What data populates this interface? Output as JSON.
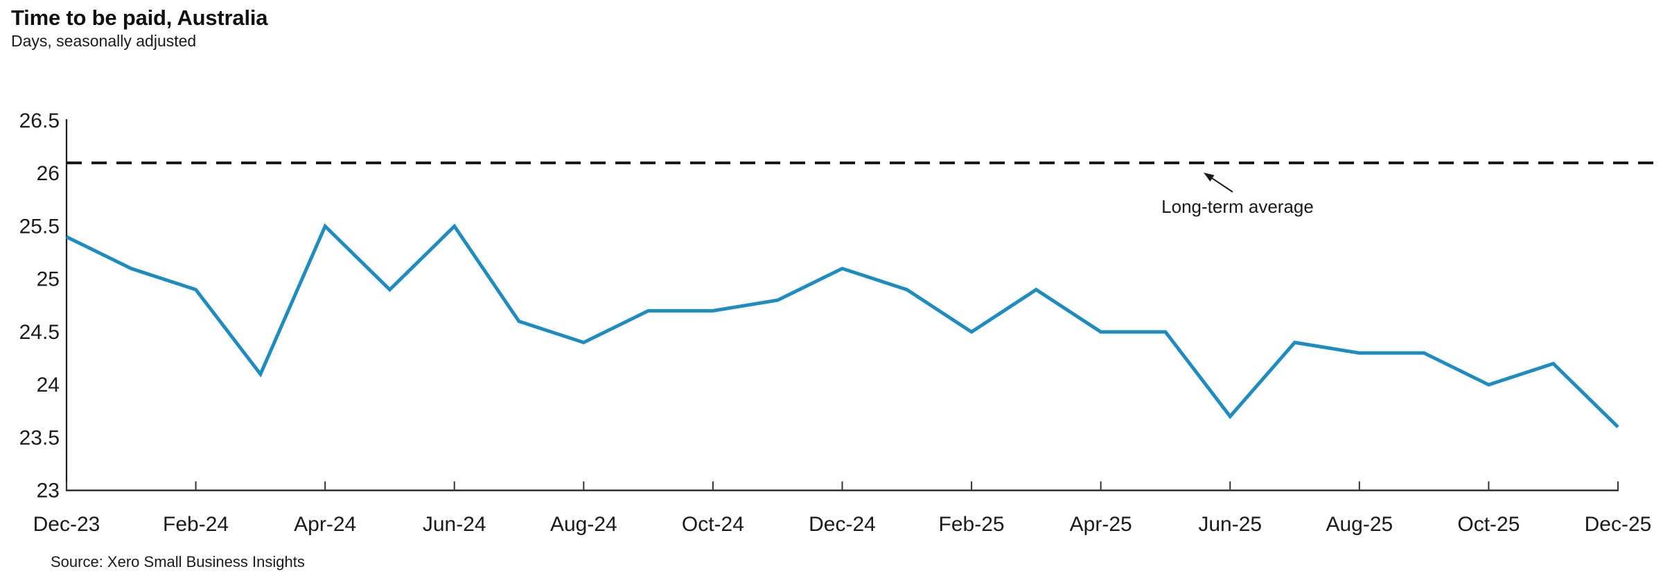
{
  "header": {
    "title": "Time to be paid, Australia",
    "subtitle": "Days, seasonally adjusted"
  },
  "chart_data": {
    "type": "line",
    "title": "Time to be paid, Australia",
    "subtitle": "Days, seasonally adjusted",
    "x": [
      "Dec-23",
      "Jan-24",
      "Feb-24",
      "Mar-24",
      "Apr-24",
      "May-24",
      "Jun-24",
      "Jul-24",
      "Aug-24",
      "Sep-24",
      "Oct-24",
      "Nov-24",
      "Dec-24",
      "Jan-25",
      "Feb-25",
      "Mar-25",
      "Apr-25",
      "May-25",
      "Jun-25",
      "Jul-25",
      "Aug-25",
      "Sep-25",
      "Oct-25",
      "Nov-25",
      "Dec-25"
    ],
    "series": [
      {
        "name": "Time to be paid (days, seasonally adjusted)",
        "values": [
          25.4,
          25.1,
          24.9,
          24.1,
          25.5,
          24.9,
          25.5,
          24.6,
          24.4,
          24.7,
          24.7,
          24.8,
          25.1,
          24.9,
          24.5,
          24.9,
          24.5,
          24.5,
          23.7,
          24.4,
          24.3,
          24.3,
          24.0,
          24.2,
          23.6
        ]
      }
    ],
    "x_tick_labels": [
      "Dec-23",
      "Feb-24",
      "Apr-24",
      "Jun-24",
      "Aug-24",
      "Oct-24",
      "Dec-24",
      "Feb-25",
      "Apr-25",
      "Jun-25",
      "Aug-25",
      "Oct-25",
      "Dec-25"
    ],
    "y_ticks": [
      26.5,
      26,
      25.5,
      25,
      24.5,
      24,
      23.5,
      23
    ],
    "ylim": [
      23,
      26.5
    ],
    "xlabel": "",
    "ylabel": "",
    "grid": false,
    "legend": false,
    "line_color": "#1E8CBE",
    "axis_color": "#1a1a1a",
    "reference_line": {
      "value": 26.1,
      "label": "Long-term average",
      "style": "dashed",
      "color": "#1a1a1a"
    }
  },
  "source": {
    "text": "Source: Xero Small Business Insights"
  }
}
